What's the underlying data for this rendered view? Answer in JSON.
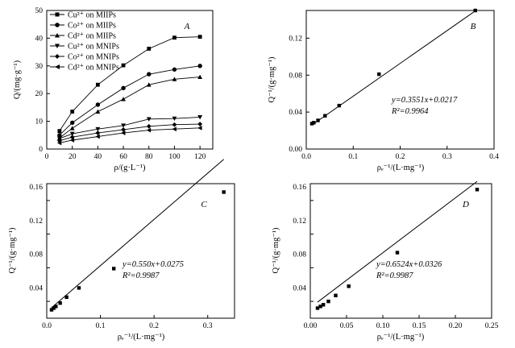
{
  "chart_data": [
    {
      "type": "line",
      "panel_label": "A",
      "ylabel": "Q/(mg·g⁻¹)",
      "xlabel": "ρ/(g·L⁻¹)",
      "xlim": [
        0,
        130
      ],
      "ylim": [
        0,
        50
      ],
      "xticks": [
        "0",
        "20",
        "40",
        "60",
        "80",
        "100",
        "120"
      ],
      "yticks": [
        "0",
        "10",
        "20",
        "30",
        "40",
        "50"
      ],
      "legend_position": "top-left",
      "series": [
        {
          "name": "Cu²⁺ on MIIPs",
          "marker": "square",
          "x": [
            10,
            20,
            40,
            60,
            80,
            100,
            120
          ],
          "y": [
            6.5,
            13.5,
            23.2,
            30.2,
            36.2,
            40.2,
            40.5
          ]
        },
        {
          "name": "Co²⁺ on MIIPs",
          "marker": "circle",
          "x": [
            10,
            20,
            40,
            60,
            80,
            100,
            120
          ],
          "y": [
            5.0,
            9.5,
            16.0,
            22.0,
            27.0,
            28.7,
            30.0
          ]
        },
        {
          "name": "Cd²⁺ on MIIPs",
          "marker": "triangle-up",
          "x": [
            10,
            20,
            40,
            60,
            80,
            100,
            120
          ],
          "y": [
            4.0,
            7.5,
            13.5,
            18.0,
            23.2,
            25.2,
            26.0
          ]
        },
        {
          "name": "Cu²⁺ on MNIPs",
          "marker": "triangle-down",
          "x": [
            10,
            20,
            40,
            60,
            80,
            100,
            120
          ],
          "y": [
            3.8,
            5.5,
            7.2,
            8.5,
            10.8,
            11.0,
            11.5
          ]
        },
        {
          "name": "Co²⁺ on MNIPs",
          "marker": "diamond",
          "x": [
            10,
            20,
            40,
            60,
            80,
            100,
            120
          ],
          "y": [
            3.0,
            4.3,
            5.8,
            7.0,
            8.2,
            8.8,
            9.0
          ]
        },
        {
          "name": "Cd²⁺ on MNIPs",
          "marker": "triangle-left",
          "x": [
            10,
            20,
            40,
            60,
            80,
            100,
            120
          ],
          "y": [
            2.2,
            3.2,
            4.5,
            5.8,
            6.8,
            7.2,
            7.6
          ]
        }
      ]
    },
    {
      "type": "scatter",
      "panel_label": "B",
      "ylabel": "Q⁻¹/(g·mg⁻¹)",
      "xlabel": "ρₑ⁻¹/(L·mg⁻¹)",
      "xlim": [
        0,
        0.4
      ],
      "ylim": [
        0,
        0.15
      ],
      "xticks": [
        "0.0",
        "0.1",
        "0.2",
        "0.3",
        "0.4"
      ],
      "yticks": [
        "0.00",
        "0.04",
        "0.08",
        "0.12"
      ],
      "x": [
        0.012,
        0.016,
        0.025,
        0.04,
        0.07,
        0.155,
        0.36
      ],
      "y": [
        0.0275,
        0.0285,
        0.031,
        0.036,
        0.047,
        0.081,
        0.15
      ],
      "fit": {
        "slope": 0.3551,
        "intercept": 0.0217,
        "x_range": [
          0.012,
          0.36
        ]
      },
      "annotation_equation": "y=0.3551x+0.0217",
      "annotation_r2": "R²=0.9964"
    },
    {
      "type": "scatter",
      "panel_label": "C",
      "ylabel": "Q⁻¹/(g·mg⁻¹)",
      "xlabel": "ρₑ⁻¹/(L·mg⁻¹)",
      "xlim": [
        0,
        0.35
      ],
      "ylim": [
        0.02,
        0.18
      ],
      "xticks": [
        "0.0",
        "0.1",
        "0.2",
        "0.3"
      ],
      "yticks": [
        "0.04",
        "0.08",
        "0.12",
        "0.16"
      ],
      "x": [
        0.009,
        0.013,
        0.017,
        0.025,
        0.037,
        0.06,
        0.125,
        0.33
      ],
      "y": [
        0.03,
        0.032,
        0.034,
        0.038,
        0.045,
        0.056,
        0.079,
        0.17
      ],
      "fit": {
        "slope": 0.55,
        "intercept": 0.0275,
        "x_range": [
          0.009,
          0.33
        ]
      },
      "annotation_equation": "y=0.550x+0.0275",
      "annotation_r2": "R²=0.9987"
    },
    {
      "type": "scatter",
      "panel_label": "D",
      "ylabel": "Q⁻¹/(g·mg⁻¹)",
      "xlabel": "ρₑ⁻¹/(L·mg⁻¹)",
      "xlim": [
        0,
        0.25
      ],
      "ylim": [
        0.02,
        0.18
      ],
      "xticks": [
        "0.00",
        "0.05",
        "0.10",
        "0.15",
        "0.20",
        "0.25"
      ],
      "yticks": [
        "0.04",
        "0.08",
        "0.12",
        "0.16"
      ],
      "x": [
        0.01,
        0.014,
        0.018,
        0.025,
        0.035,
        0.053,
        0.12,
        0.23
      ],
      "y": [
        0.032,
        0.034,
        0.036,
        0.04,
        0.047,
        0.058,
        0.098,
        0.173
      ],
      "fit": {
        "slope": 0.6524,
        "intercept": 0.0326,
        "x_range": [
          0.01,
          0.23
        ]
      },
      "annotation_equation": "y=0.6524x+0.0326",
      "annotation_r2": "R²=0.9987"
    }
  ]
}
